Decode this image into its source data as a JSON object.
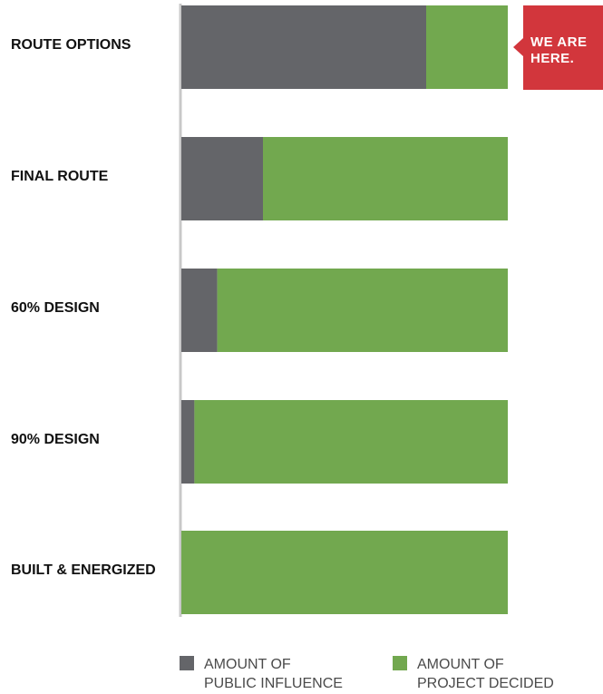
{
  "chart_data": {
    "type": "bar",
    "orientation": "horizontal",
    "stacked": true,
    "categories": [
      "ROUTE OPTIONS",
      "FINAL ROUTE",
      "60% DESIGN",
      "90% DESIGN",
      "BUILT & ENERGIZED"
    ],
    "series": [
      {
        "name": "AMOUNT OF PUBLIC INFLUENCE",
        "legend_lines": [
          "AMOUNT OF",
          "PUBLIC INFLUENCE"
        ],
        "color": "#646569",
        "values": [
          75,
          25,
          11,
          4,
          0
        ]
      },
      {
        "name": "AMOUNT OF PROJECT DECIDED",
        "legend_lines": [
          "AMOUNT OF",
          "PROJECT DECIDED"
        ],
        "color": "#72a84f",
        "values": [
          25,
          75,
          89,
          96,
          100
        ]
      }
    ],
    "xlim": [
      0,
      100
    ],
    "grid": false,
    "legend_position": "bottom",
    "callout": {
      "category_index": 0,
      "lines": [
        "WE ARE",
        "HERE."
      ],
      "color": "#d2363c"
    }
  }
}
